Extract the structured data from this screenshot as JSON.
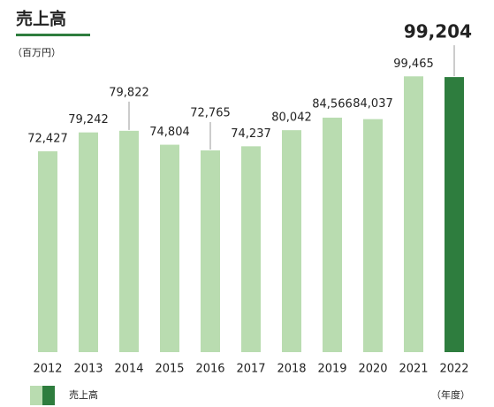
{
  "chart_data": {
    "type": "bar",
    "title": "売上高",
    "y_unit": "（百万円）",
    "x_unit": "（年度）",
    "categories": [
      "2012",
      "2013",
      "2014",
      "2015",
      "2016",
      "2017",
      "2018",
      "2019",
      "2020",
      "2021",
      "2022"
    ],
    "series": [
      {
        "name": "売上高",
        "values": [
          72427,
          79242,
          79822,
          74804,
          72765,
          74237,
          80042,
          84566,
          84037,
          99465,
          99204
        ],
        "value_labels": [
          "72,427",
          "79,242",
          "79,822",
          "74,804",
          "72,765",
          "74,237",
          "80,042",
          "84,566",
          "84,037",
          "99,465",
          "99,204"
        ],
        "colors": [
          "#b9dcb0",
          "#b9dcb0",
          "#b9dcb0",
          "#b9dcb0",
          "#b9dcb0",
          "#b9dcb0",
          "#b9dcb0",
          "#b9dcb0",
          "#b9dcb0",
          "#b9dcb0",
          "#2e7d3e"
        ]
      }
    ],
    "ylim": [
      0,
      100000
    ]
  }
}
